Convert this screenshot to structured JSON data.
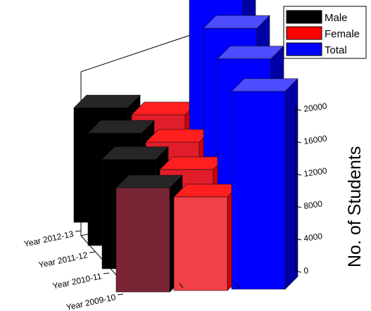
{
  "chart_data": {
    "type": "bar",
    "subtype": "3d-grouped",
    "categories": [
      "Year 2009-10",
      "Year 2010-11",
      "Year 2011-12",
      "Year 2012-13"
    ],
    "series": [
      {
        "name": "Male",
        "values": [
          10000,
          10500,
          10800,
          11000
        ],
        "color": "#000000"
      },
      {
        "name": "Female",
        "values": [
          9000,
          9400,
          9800,
          10200
        ],
        "color": "#ff0000"
      },
      {
        "name": "Total",
        "values": [
          19000,
          19900,
          20600,
          21200
        ],
        "color": "#0000ff"
      }
    ],
    "ylabel": "No. of Students",
    "ylim": [
      0,
      20000
    ],
    "yticks": [
      0,
      4000,
      8000,
      12000,
      16000,
      20000
    ],
    "legend": {
      "placement": "top-right",
      "entries": [
        "Male",
        "Female",
        "Total"
      ]
    },
    "grid": false
  }
}
